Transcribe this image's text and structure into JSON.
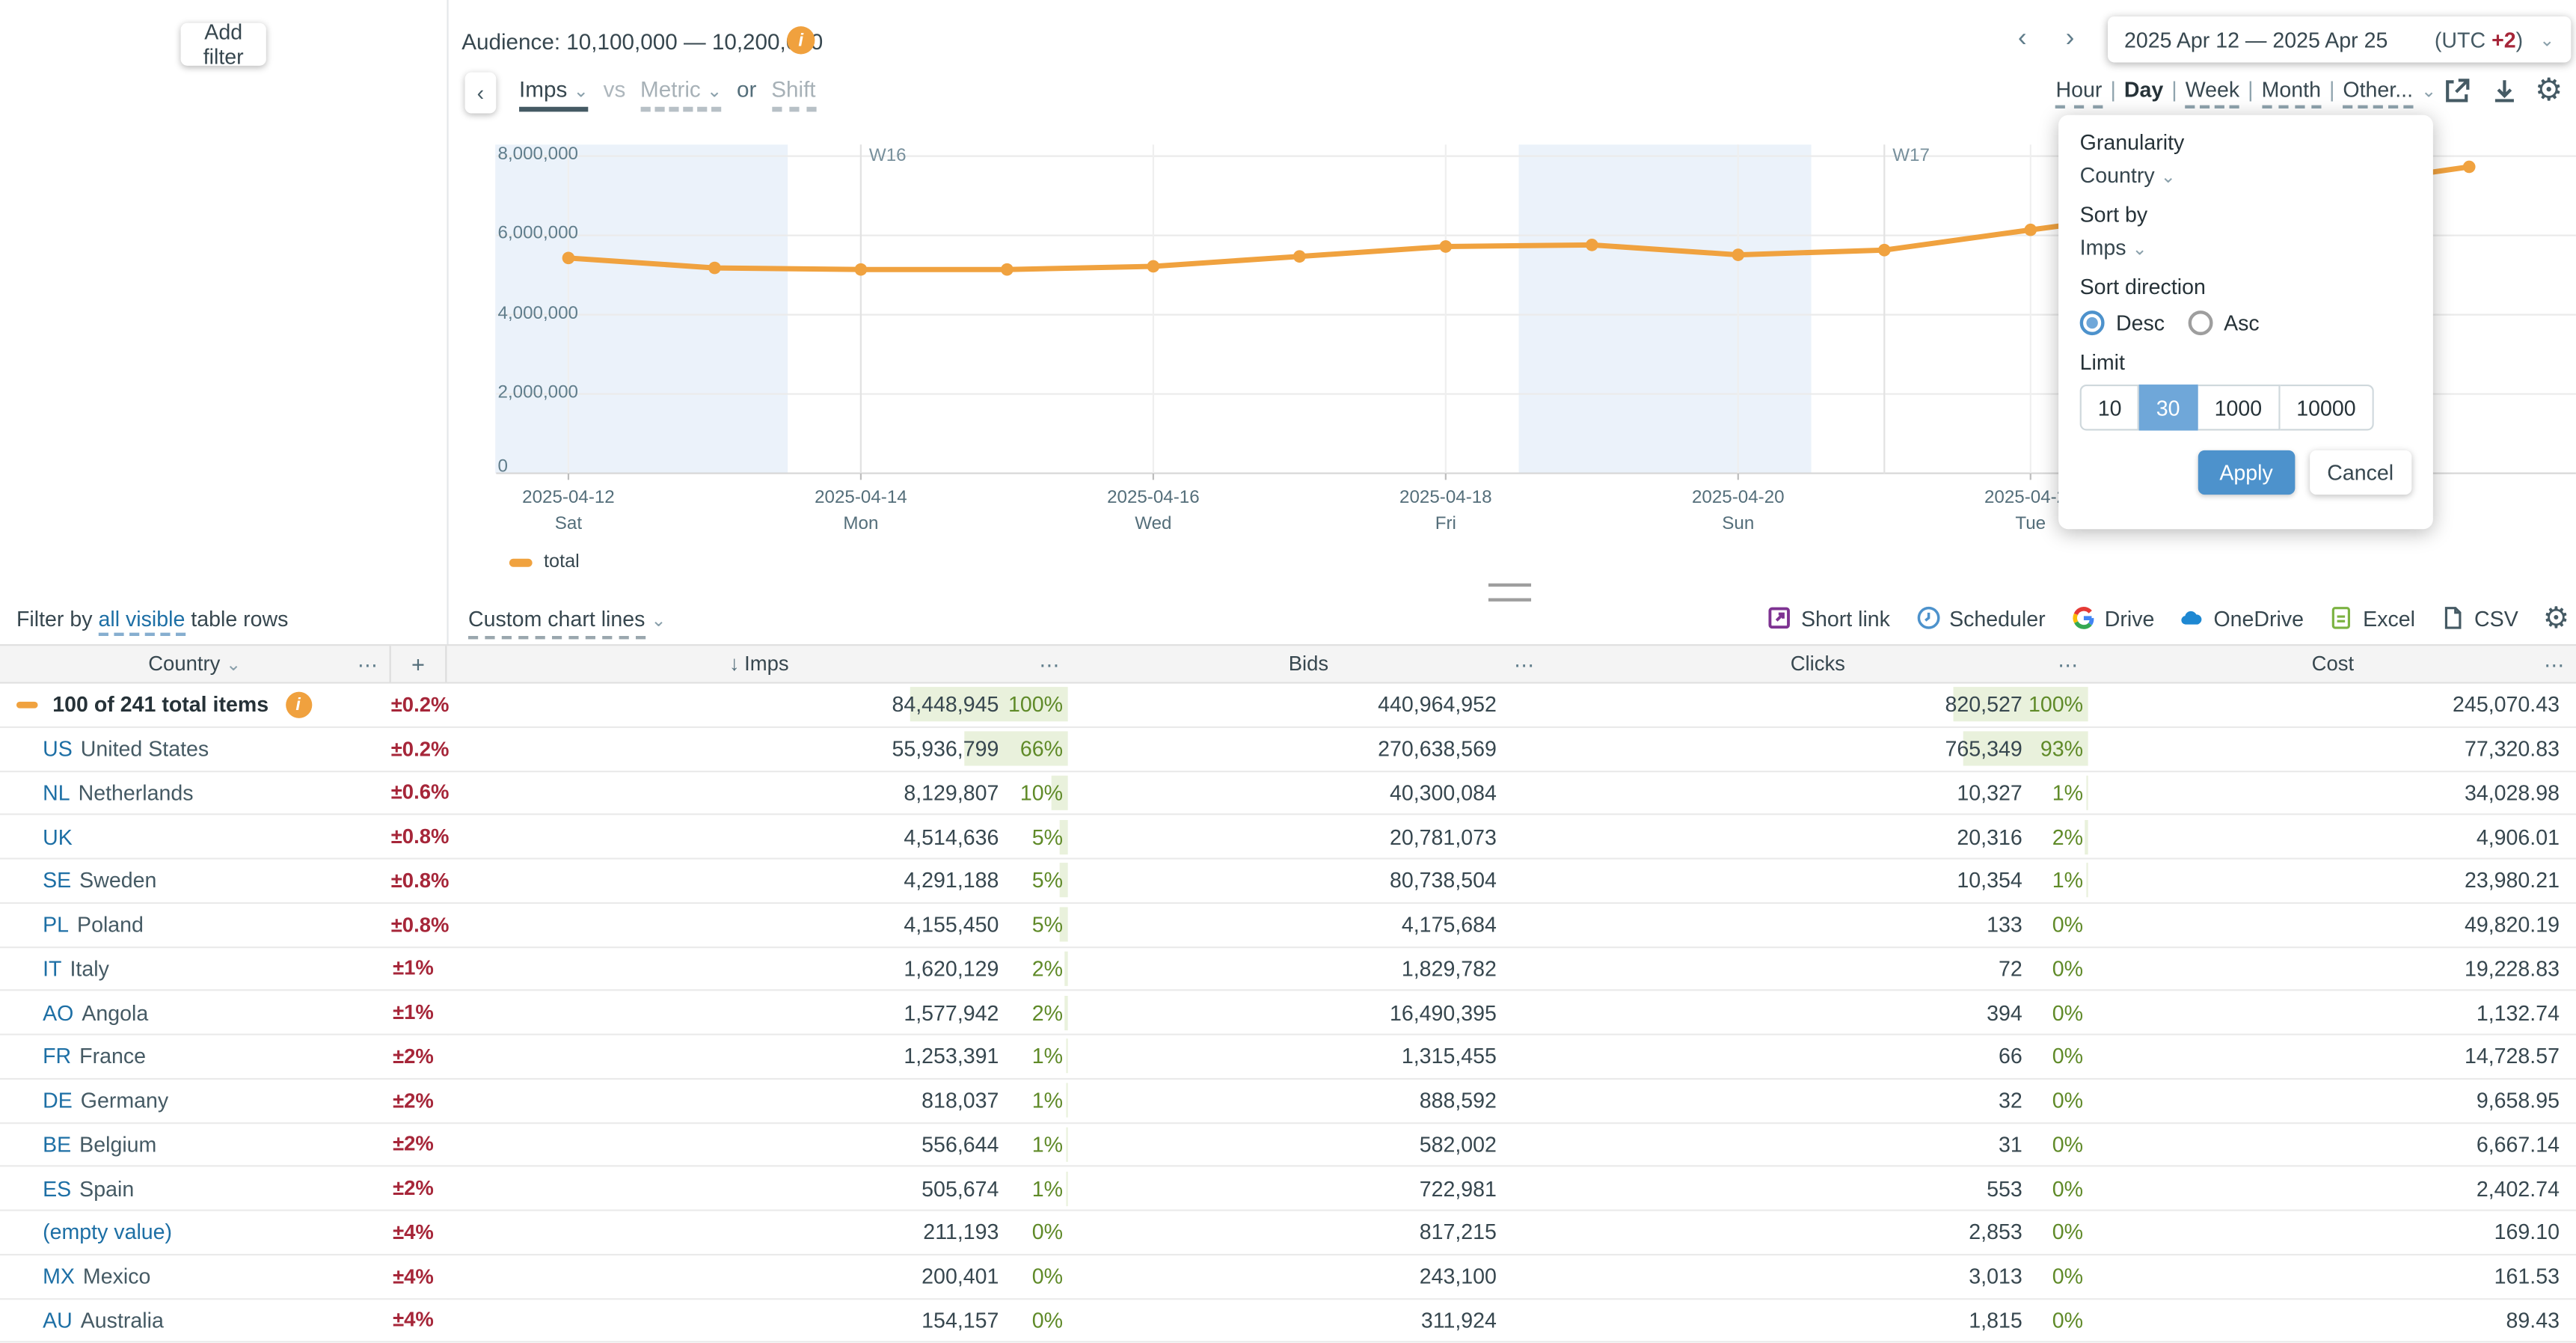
{
  "glyphs": {
    "chevron_down": "⌄",
    "chevron_left": "‹",
    "chevron_right": "›",
    "menu_dots": "⋯",
    "plus": "+",
    "sort_down": "↓",
    "gear": "⚙",
    "info": "i"
  },
  "topbar": {
    "add_filter": "Add filter",
    "audience": "Audience: 10,100,000 — 10,200,000"
  },
  "metric_bar": {
    "primary": "Imps",
    "vs": "vs",
    "secondary": "Metric",
    "or": "or",
    "shift": "Shift"
  },
  "date_nav": {
    "range": "2025 Apr 12 — 2025 Apr 25",
    "utc_label": "(UTC",
    "utc_offset": "+2",
    ")": ")"
  },
  "granularity_tabs": {
    "separator": "|",
    "items": [
      {
        "label": "Hour",
        "active": false
      },
      {
        "label": "Day",
        "active": true
      },
      {
        "label": "Week",
        "active": false
      },
      {
        "label": "Month",
        "active": false
      },
      {
        "label": "Other...",
        "active": false
      }
    ]
  },
  "chart_data": {
    "type": "line",
    "title": "",
    "xlabel": "",
    "ylabel": "Imps",
    "x": [
      "2025-04-12",
      "2025-04-13",
      "2025-04-14",
      "2025-04-15",
      "2025-04-16",
      "2025-04-17",
      "2025-04-18",
      "2025-04-19",
      "2025-04-20",
      "2025-04-21",
      "2025-04-22",
      "2025-04-23",
      "2025-04-24",
      "2025-04-25"
    ],
    "weekdays": [
      "Sat",
      "Sun",
      "Mon",
      "Tue",
      "Wed",
      "Thu",
      "Fri",
      "Sat",
      "Sun",
      "Mon",
      "Tue",
      "Wed",
      "Thu",
      "Fri"
    ],
    "series": [
      {
        "name": "total",
        "color": "#F0A23F",
        "values": [
          5430000,
          5180000,
          5140000,
          5140000,
          5220000,
          5470000,
          5720000,
          5760000,
          5510000,
          5630000,
          6140000,
          6630000,
          7200000,
          7730000
        ]
      }
    ],
    "ylim": [
      0,
      8000000
    ],
    "yticks": [
      0,
      2000000,
      4000000,
      6000000,
      8000000
    ],
    "ytick_labels": [
      "0",
      "2,000,000",
      "4,000,000",
      "6,000,000",
      "8,000,000"
    ],
    "xtick_indices": [
      0,
      2,
      4,
      6,
      8,
      10
    ],
    "week_markers": [
      {
        "label": "W16",
        "index": 2
      },
      {
        "label": "W17",
        "index": 9
      }
    ],
    "weekend_bands": [
      [
        0,
        1
      ],
      [
        7,
        8
      ]
    ],
    "grid": true,
    "legend_position": "bottom-left"
  },
  "legend": {
    "total": "total"
  },
  "filter_row": {
    "prefix": "Filter by",
    "link": "all visible",
    "suffix": "table rows",
    "custom_chart_lines": "Custom chart lines"
  },
  "toolbar": {
    "items": [
      {
        "icon": "short-link-icon",
        "label": "Short link"
      },
      {
        "icon": "scheduler-icon",
        "label": "Scheduler"
      },
      {
        "icon": "drive-icon",
        "label": "Drive"
      },
      {
        "icon": "onedrive-icon",
        "label": "OneDrive"
      },
      {
        "icon": "excel-icon",
        "label": "Excel"
      },
      {
        "icon": "csv-icon",
        "label": "CSV"
      }
    ]
  },
  "popover": {
    "granularity_label": "Granularity",
    "granularity_value": "Country",
    "sort_by_label": "Sort by",
    "sort_by_value": "Imps",
    "sort_direction_label": "Sort direction",
    "directions": [
      {
        "label": "Desc",
        "selected": true
      },
      {
        "label": "Asc",
        "selected": false
      }
    ],
    "limit_label": "Limit",
    "limits": [
      {
        "label": "10",
        "selected": false
      },
      {
        "label": "30",
        "selected": true
      },
      {
        "label": "1000",
        "selected": false
      },
      {
        "label": "10000",
        "selected": false
      }
    ],
    "apply": "Apply",
    "cancel": "Cancel"
  },
  "table": {
    "headers": {
      "country": "Country",
      "imps": "Imps",
      "bids": "Bids",
      "clicks": "Clicks",
      "cost": "Cost"
    },
    "total_row": {
      "label": "100 of 241 total items",
      "delta": "±0.2%",
      "imps": "84,448,945",
      "imps_pct": "100%",
      "imps_bar": 100,
      "bids": "440,964,952",
      "clicks": "820,527",
      "clicks_pct": "100%",
      "clicks_bar": 100,
      "cost": "245,070.43"
    },
    "rows": [
      {
        "code": "US",
        "name": "United States",
        "delta": "±0.2%",
        "imps": "55,936,799",
        "imps_pct": "66%",
        "imps_bar": 66,
        "bids": "270,638,569",
        "clicks": "765,349",
        "clicks_pct": "93%",
        "clicks_bar": 93,
        "cost": "77,320.83"
      },
      {
        "code": "NL",
        "name": "Netherlands",
        "delta": "±0.6%",
        "imps": "8,129,807",
        "imps_pct": "10%",
        "imps_bar": 10,
        "bids": "40,300,084",
        "clicks": "10,327",
        "clicks_pct": "1%",
        "clicks_bar": 1,
        "cost": "34,028.98"
      },
      {
        "code": "UK",
        "name": "",
        "delta": "±0.8%",
        "imps": "4,514,636",
        "imps_pct": "5%",
        "imps_bar": 5,
        "bids": "20,781,073",
        "clicks": "20,316",
        "clicks_pct": "2%",
        "clicks_bar": 2,
        "cost": "4,906.01"
      },
      {
        "code": "SE",
        "name": "Sweden",
        "delta": "±0.8%",
        "imps": "4,291,188",
        "imps_pct": "5%",
        "imps_bar": 5,
        "bids": "80,738,504",
        "clicks": "10,354",
        "clicks_pct": "1%",
        "clicks_bar": 1,
        "cost": "23,980.21"
      },
      {
        "code": "PL",
        "name": "Poland",
        "delta": "±0.8%",
        "imps": "4,155,450",
        "imps_pct": "5%",
        "imps_bar": 5,
        "bids": "4,175,684",
        "clicks": "133",
        "clicks_pct": "0%",
        "clicks_bar": 0,
        "cost": "49,820.19"
      },
      {
        "code": "IT",
        "name": "Italy",
        "delta": "±1%",
        "imps": "1,620,129",
        "imps_pct": "2%",
        "imps_bar": 2,
        "bids": "1,829,782",
        "clicks": "72",
        "clicks_pct": "0%",
        "clicks_bar": 0,
        "cost": "19,228.83"
      },
      {
        "code": "AO",
        "name": "Angola",
        "delta": "±1%",
        "imps": "1,577,942",
        "imps_pct": "2%",
        "imps_bar": 2,
        "bids": "16,490,395",
        "clicks": "394",
        "clicks_pct": "0%",
        "clicks_bar": 0,
        "cost": "1,132.74"
      },
      {
        "code": "FR",
        "name": "France",
        "delta": "±2%",
        "imps": "1,253,391",
        "imps_pct": "1%",
        "imps_bar": 1,
        "bids": "1,315,455",
        "clicks": "66",
        "clicks_pct": "0%",
        "clicks_bar": 0,
        "cost": "14,728.57"
      },
      {
        "code": "DE",
        "name": "Germany",
        "delta": "±2%",
        "imps": "818,037",
        "imps_pct": "1%",
        "imps_bar": 1,
        "bids": "888,592",
        "clicks": "32",
        "clicks_pct": "0%",
        "clicks_bar": 0,
        "cost": "9,658.95"
      },
      {
        "code": "BE",
        "name": "Belgium",
        "delta": "±2%",
        "imps": "556,644",
        "imps_pct": "1%",
        "imps_bar": 1,
        "bids": "582,002",
        "clicks": "31",
        "clicks_pct": "0%",
        "clicks_bar": 0,
        "cost": "6,667.14"
      },
      {
        "code": "ES",
        "name": "Spain",
        "delta": "±2%",
        "imps": "505,674",
        "imps_pct": "1%",
        "imps_bar": 1,
        "bids": "722,981",
        "clicks": "553",
        "clicks_pct": "0%",
        "clicks_bar": 0,
        "cost": "2,402.74"
      },
      {
        "code": "(empty value)",
        "name": "",
        "delta": "±4%",
        "imps": "211,193",
        "imps_pct": "0%",
        "imps_bar": 0,
        "bids": "817,215",
        "clicks": "2,853",
        "clicks_pct": "0%",
        "clicks_bar": 0,
        "cost": "169.10"
      },
      {
        "code": "MX",
        "name": "Mexico",
        "delta": "±4%",
        "imps": "200,401",
        "imps_pct": "0%",
        "imps_bar": 0,
        "bids": "243,100",
        "clicks": "3,013",
        "clicks_pct": "0%",
        "clicks_bar": 0,
        "cost": "161.53"
      },
      {
        "code": "AU",
        "name": "Australia",
        "delta": "±4%",
        "imps": "154,157",
        "imps_pct": "0%",
        "imps_bar": 0,
        "bids": "311,924",
        "clicks": "1,815",
        "clicks_pct": "0%",
        "clicks_bar": 0,
        "cost": "89.43"
      }
    ]
  },
  "colors": {
    "accent_blue": "#4D92CC",
    "selected_blue": "#6FA7D9",
    "orange": "#F0A23F",
    "maroon": "#A62639",
    "green": "#5F8A28",
    "green_bar": "#E9F1DC",
    "link_blue": "#1D6FA5",
    "weekend_band": "#EBF2FA"
  }
}
